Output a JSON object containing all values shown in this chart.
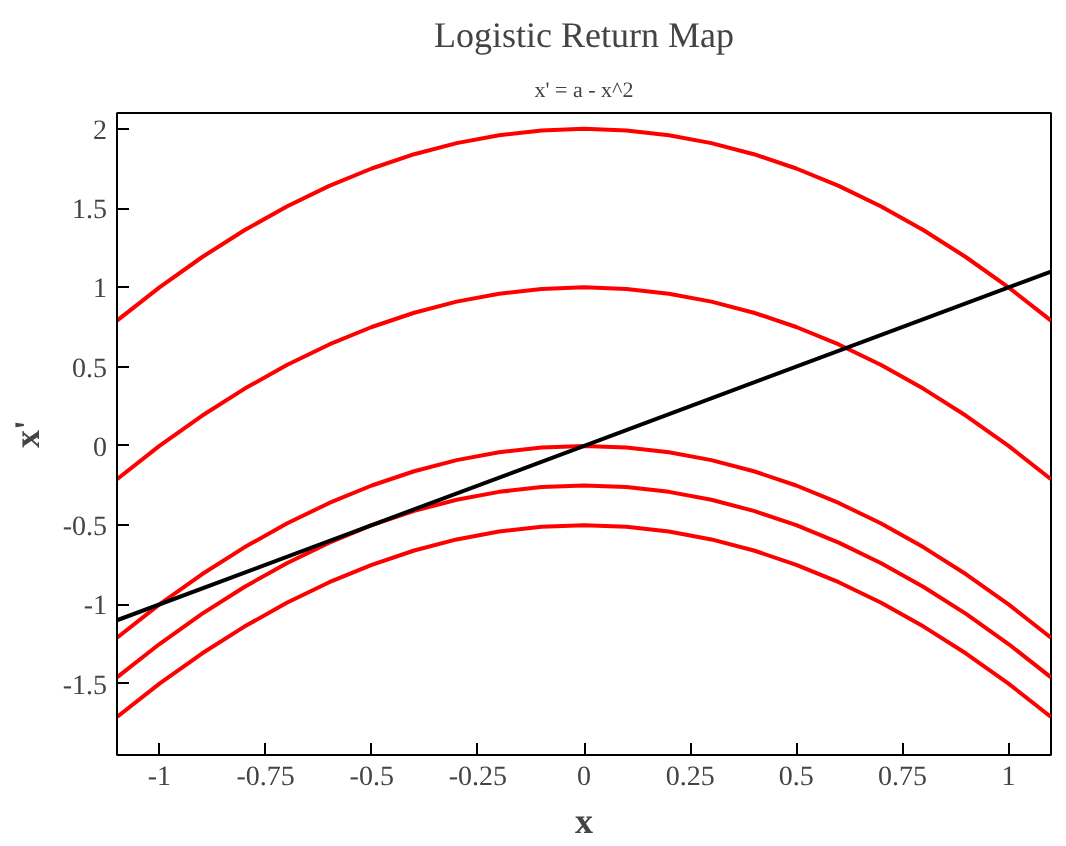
{
  "chart_data": {
    "type": "line",
    "title": "Logistic Return Map",
    "subtitle": "x' = a - x^2",
    "xlabel": "x",
    "ylabel": "x'",
    "x": [
      -1.1,
      -1.0,
      -0.9,
      -0.8,
      -0.7,
      -0.6,
      -0.5,
      -0.4,
      -0.3,
      -0.2,
      -0.1,
      0,
      0.1,
      0.2,
      0.3,
      0.4,
      0.5,
      0.6,
      0.7,
      0.8,
      0.9,
      1.0,
      1.1
    ],
    "series": [
      {
        "color": "#ff0000",
        "values": [
          0.79,
          1,
          1.19,
          1.36,
          1.51,
          1.64,
          1.75,
          1.84,
          1.91,
          1.96,
          1.99,
          2,
          1.99,
          1.96,
          1.91,
          1.84,
          1.75,
          1.64,
          1.51,
          1.36,
          1.19,
          1,
          0.79
        ]
      },
      {
        "color": "#ff0000",
        "values": [
          -0.21,
          0,
          0.19,
          0.36,
          0.51,
          0.64,
          0.75,
          0.84,
          0.91,
          0.96,
          0.99,
          1,
          0.99,
          0.96,
          0.91,
          0.84,
          0.75,
          0.64,
          0.51,
          0.36,
          0.19,
          0,
          -0.21
        ]
      },
      {
        "color": "#ff0000",
        "values": [
          -1.21,
          -1,
          -0.81,
          -0.64,
          -0.49,
          -0.36,
          -0.25,
          -0.16,
          -0.09,
          -0.04,
          -0.01,
          0,
          -0.01,
          -0.04,
          -0.09,
          -0.16,
          -0.25,
          -0.36,
          -0.49,
          -0.64,
          -0.81,
          -1,
          -1.21
        ]
      },
      {
        "color": "#ff0000",
        "values": [
          -1.46,
          -1.25,
          -1.06,
          -0.89,
          -0.74,
          -0.61,
          -0.5,
          -0.41,
          -0.34,
          -0.29,
          -0.26,
          -0.25,
          -0.26,
          -0.29,
          -0.34,
          -0.41,
          -0.5,
          -0.61,
          -0.74,
          -0.89,
          -1.06,
          -1.25,
          -1.46
        ]
      },
      {
        "color": "#ff0000",
        "values": [
          -1.71,
          -1.5,
          -1.31,
          -1.14,
          -0.99,
          -0.86,
          -0.75,
          -0.66,
          -0.59,
          -0.54,
          -0.51,
          -0.5,
          -0.51,
          -0.54,
          -0.59,
          -0.66,
          -0.75,
          -0.86,
          -0.99,
          -1.14,
          -1.31,
          -1.5,
          -1.71
        ]
      },
      {
        "color": "#000000",
        "x": [
          -1.1,
          1.1
        ],
        "values": [
          -1.1,
          1.1
        ]
      }
    ],
    "xlim": [
      -1.1,
      1.1
    ],
    "ylim": [
      -1.95,
      2.1
    ],
    "xticks": [
      -1,
      -0.75,
      -0.5,
      -0.25,
      0,
      0.25,
      0.5,
      0.75,
      1
    ],
    "yticks": [
      -1.5,
      -1,
      -0.5,
      0,
      0.5,
      1,
      1.5,
      2
    ],
    "grid": false,
    "marker": "none",
    "line_style": "solid"
  }
}
